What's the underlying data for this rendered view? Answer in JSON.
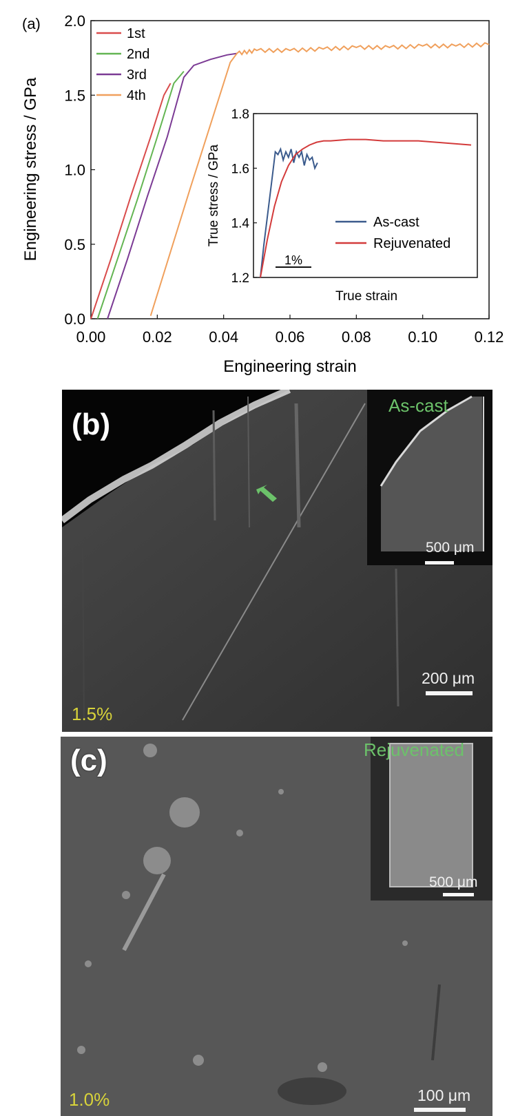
{
  "panel_a": {
    "letter": "(a)",
    "chart_data": {
      "type": "line",
      "xlabel": "Engineering strain",
      "ylabel": "Engineering stress / GPa",
      "xlim": [
        0,
        0.12
      ],
      "ylim": [
        0,
        2.0
      ],
      "xticks": [
        "0.00",
        "0.02",
        "0.04",
        "0.06",
        "0.08",
        "0.10",
        "0.12"
      ],
      "yticks": [
        "0.0",
        "0.5",
        "1.0",
        "1.5",
        "2.0"
      ],
      "legend_position": "top-left",
      "series": [
        {
          "name": "1st",
          "color": "#d94b4b",
          "x": [
            0.0,
            0.006,
            0.012,
            0.018,
            0.022,
            0.024
          ],
          "y": [
            0.0,
            0.4,
            0.82,
            1.22,
            1.5,
            1.58
          ]
        },
        {
          "name": "2nd",
          "color": "#63b552",
          "x": [
            0.002,
            0.008,
            0.014,
            0.02,
            0.025,
            0.028
          ],
          "y": [
            0.0,
            0.4,
            0.8,
            1.22,
            1.58,
            1.66
          ]
        },
        {
          "name": "3rd",
          "color": "#7b3a94",
          "x": [
            0.005,
            0.011,
            0.017,
            0.023,
            0.028,
            0.031,
            0.036,
            0.041,
            0.044
          ],
          "y": [
            0.0,
            0.4,
            0.82,
            1.22,
            1.62,
            1.7,
            1.74,
            1.77,
            1.78
          ]
        },
        {
          "name": "4th",
          "color": "#f0a05c",
          "x": [
            0.018,
            0.024,
            0.03,
            0.036,
            0.042,
            0.044,
            0.05,
            0.06,
            0.07,
            0.08,
            0.09,
            0.1,
            0.11,
            0.12
          ],
          "y": [
            0.02,
            0.45,
            0.88,
            1.3,
            1.72,
            1.78,
            1.8,
            1.8,
            1.81,
            1.82,
            1.82,
            1.83,
            1.83,
            1.84
          ]
        }
      ],
      "inset": {
        "type": "line",
        "xlabel": "True strain",
        "ylabel": "True stress / GPa",
        "ylim": [
          1.2,
          1.8
        ],
        "yticks": [
          "1.2",
          "1.4",
          "1.6",
          "1.8"
        ],
        "scale_label": "1%",
        "legend_position": "bottom-right",
        "series": [
          {
            "name": "As-cast",
            "color": "#3a5a8c",
            "x": [
              0,
              0.2,
              0.45,
              0.7,
              0.85,
              1.0,
              1.15,
              1.3,
              1.45,
              1.6,
              1.75,
              1.9,
              2.05,
              2.2,
              2.35,
              2.5,
              2.65,
              2.8,
              2.95,
              3.1,
              3.25
            ],
            "y": [
              1.2,
              1.32,
              1.45,
              1.58,
              1.66,
              1.65,
              1.67,
              1.63,
              1.66,
              1.64,
              1.67,
              1.62,
              1.66,
              1.64,
              1.66,
              1.61,
              1.65,
              1.63,
              1.64,
              1.6,
              1.62
            ]
          },
          {
            "name": "Rejuvenated",
            "color": "#d33a3a",
            "x": [
              0,
              0.4,
              0.8,
              1.2,
              1.6,
              2.0,
              2.4,
              2.8,
              3.2,
              3.6,
              4.0,
              5.0,
              6.0,
              7.0,
              8.0,
              9.0,
              10.0,
              11.0,
              12.0
            ],
            "y": [
              1.2,
              1.34,
              1.46,
              1.55,
              1.61,
              1.65,
              1.67,
              1.685,
              1.695,
              1.7,
              1.7,
              1.705,
              1.705,
              1.7,
              1.7,
              1.7,
              1.695,
              1.69,
              1.685
            ]
          }
        ]
      }
    }
  },
  "panel_b": {
    "letter": "(b)",
    "strain": "1.5%",
    "scale": "200 μm",
    "inset_label": "As-cast",
    "inset_scale": "500 μm"
  },
  "panel_c": {
    "letter": "(c)",
    "strain": "1.0%",
    "scale": "100 μm",
    "inset_label": "Rejuvenated",
    "inset_scale": "500 μm"
  }
}
